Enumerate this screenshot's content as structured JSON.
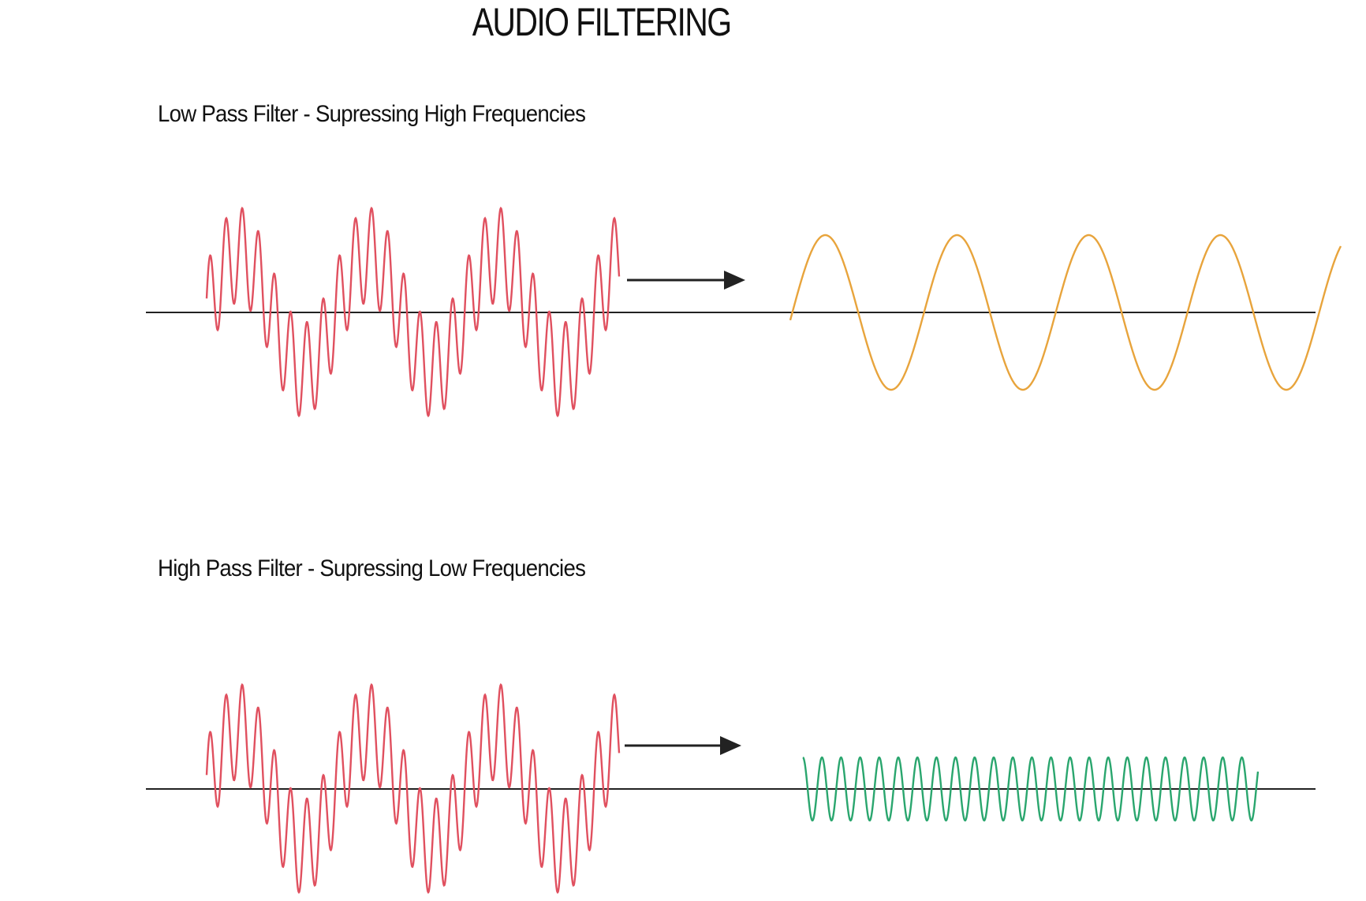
{
  "title": "AUDIO FILTERING",
  "panels": [
    {
      "label": "Low Pass Filter - Supressing High Frequencies",
      "input_signal": "composite",
      "output_signal": "low-frequency"
    },
    {
      "label": "High Pass Filter - Supressing Low Frequencies",
      "input_signal": "composite",
      "output_signal": "high-frequency"
    }
  ],
  "colors": {
    "input_wave": "#e0505f",
    "low_pass_output": "#e8a43c",
    "high_pass_output": "#2aa66e",
    "axis": "#222222",
    "arrow": "#222222"
  },
  "icons": [
    "arrow-right-icon"
  ]
}
